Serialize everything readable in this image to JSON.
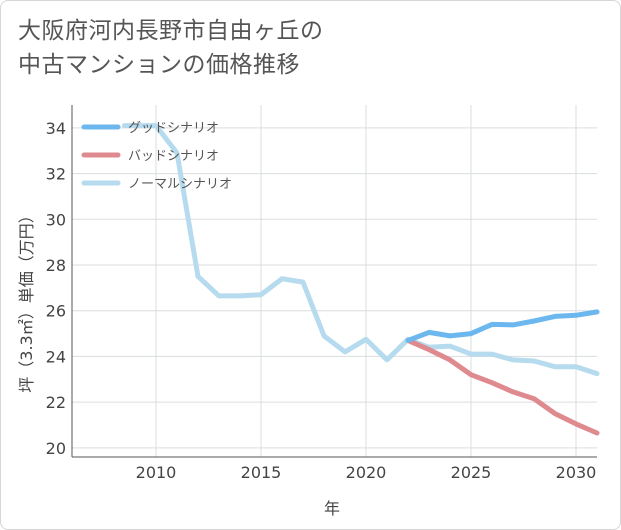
{
  "title": {
    "line1": "大阪府河内長野市自由ヶ丘の",
    "line2": "中古マンションの価格推移"
  },
  "chart_data": {
    "type": "line",
    "xlabel": "年",
    "ylabel": "坪（3.3㎡）単価（万円）",
    "xlim": [
      2006,
      2031
    ],
    "ylim": [
      19.6,
      35.0
    ],
    "x_ticks": [
      2010,
      2015,
      2020,
      2025,
      2030
    ],
    "y_ticks": [
      20,
      22,
      24,
      26,
      28,
      30,
      32,
      34
    ],
    "grid": true,
    "legend_position": "top-left",
    "series": [
      {
        "name": "グッドシナリオ",
        "color": "#6cb8ee",
        "x": [
          2022,
          2023,
          2024,
          2025,
          2026,
          2027,
          2028,
          2029,
          2030,
          2031
        ],
        "y": [
          24.7,
          25.05,
          24.9,
          25.0,
          25.4,
          25.38,
          25.55,
          25.75,
          25.8,
          25.95
        ]
      },
      {
        "name": "バッドシナリオ",
        "color": "#df8a8e",
        "x": [
          2022,
          2023,
          2024,
          2025,
          2026,
          2027,
          2028,
          2029,
          2030,
          2031
        ],
        "y": [
          24.7,
          24.3,
          23.85,
          23.2,
          22.85,
          22.45,
          22.15,
          21.5,
          21.05,
          20.65
        ]
      },
      {
        "name": "ノーマルシナリオ",
        "color": "#b6dbee",
        "x": [
          2008.5,
          2010,
          2011,
          2012,
          2013,
          2014,
          2015,
          2016,
          2017,
          2018,
          2019,
          2020,
          2021,
          2022,
          2023,
          2024,
          2025,
          2026,
          2027,
          2028,
          2029,
          2030,
          2031
        ],
        "y": [
          34.1,
          34.1,
          32.9,
          27.5,
          26.65,
          26.65,
          26.7,
          27.4,
          27.25,
          24.9,
          24.2,
          24.75,
          23.85,
          24.75,
          24.4,
          24.45,
          24.1,
          24.1,
          23.85,
          23.8,
          23.55,
          23.55,
          23.25
        ]
      }
    ]
  }
}
